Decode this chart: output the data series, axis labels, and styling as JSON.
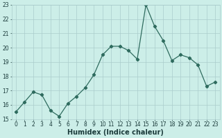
{
  "x": [
    0,
    1,
    2,
    3,
    4,
    5,
    6,
    7,
    8,
    9,
    10,
    11,
    12,
    13,
    14,
    15,
    16,
    17,
    18,
    19,
    20,
    21,
    22,
    23
  ],
  "y": [
    15.5,
    16.2,
    16.9,
    16.7,
    15.6,
    15.2,
    16.1,
    16.6,
    17.2,
    18.1,
    19.5,
    20.1,
    20.1,
    19.8,
    19.2,
    23.0,
    21.5,
    20.5,
    19.1,
    19.5,
    19.3,
    18.8,
    17.3,
    17.6
  ],
  "xlabel": "Humidex (Indice chaleur)",
  "ylim": [
    15,
    23
  ],
  "xlim": [
    -0.5,
    23.5
  ],
  "yticks": [
    15,
    16,
    17,
    18,
    19,
    20,
    21,
    22,
    23
  ],
  "xticks": [
    0,
    1,
    2,
    3,
    4,
    5,
    6,
    7,
    8,
    9,
    10,
    11,
    12,
    13,
    14,
    15,
    16,
    17,
    18,
    19,
    20,
    21,
    22,
    23
  ],
  "line_color": "#2e6b5e",
  "marker": "D",
  "marker_size": 2.2,
  "bg_color": "#cceee8",
  "grid_color": "#aacccc",
  "font_color": "#1a3a3a",
  "tick_fontsize": 5.5,
  "xlabel_fontsize": 7.0
}
